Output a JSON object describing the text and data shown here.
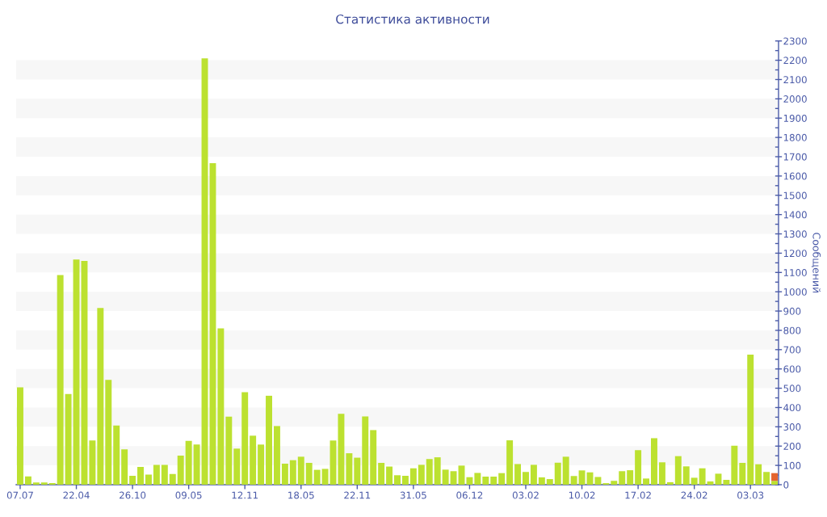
{
  "chart_data": {
    "type": "bar",
    "title": "Статистика активности",
    "ylabel": "Сообщений",
    "categories": [
      "07.07",
      null,
      null,
      null,
      null,
      null,
      null,
      "22.04",
      null,
      null,
      null,
      null,
      null,
      null,
      "26.10",
      null,
      null,
      null,
      null,
      null,
      null,
      "09.05",
      null,
      null,
      null,
      null,
      null,
      null,
      "12.11",
      null,
      null,
      null,
      null,
      null,
      null,
      "18.05",
      null,
      null,
      null,
      null,
      null,
      null,
      "22.11",
      null,
      null,
      null,
      null,
      null,
      null,
      "31.05",
      null,
      null,
      null,
      null,
      null,
      null,
      "06.12",
      null,
      null,
      null,
      null,
      null,
      null,
      "03.02",
      null,
      null,
      null,
      null,
      null,
      null,
      "10.02",
      null,
      null,
      null,
      null,
      null,
      null,
      "17.02",
      null,
      null,
      null,
      null,
      null,
      null,
      "24.02",
      null,
      null,
      null,
      null,
      null,
      null,
      "03.03",
      null,
      null,
      null
    ],
    "series": [
      {
        "color": "#bce130",
        "values": [
          505,
          43,
          12,
          11,
          8,
          1087,
          470,
          1167,
          1160,
          229,
          916,
          543,
          307,
          183,
          46,
          92,
          52,
          103,
          103,
          56,
          151,
          227,
          208,
          2210,
          1667,
          810,
          353,
          187,
          479,
          254,
          208,
          461,
          304,
          109,
          127,
          145,
          113,
          77,
          82,
          229,
          367,
          163,
          140,
          354,
          283,
          113,
          94,
          49,
          46,
          85,
          103,
          133,
          142,
          78,
          70,
          99,
          39,
          61,
          42,
          42,
          60,
          230,
          107,
          66,
          103,
          38,
          29,
          114,
          145,
          45,
          74,
          64,
          40,
          8,
          20,
          70,
          75,
          179,
          32,
          241,
          116,
          13,
          148,
          95,
          36,
          85,
          17,
          57,
          25,
          202,
          113,
          674,
          106,
          66,
          20
        ]
      },
      {
        "color": "#e5632e",
        "values": [
          null,
          null,
          null,
          null,
          null,
          null,
          null,
          null,
          null,
          null,
          null,
          null,
          null,
          null,
          null,
          null,
          null,
          null,
          null,
          null,
          null,
          null,
          null,
          null,
          null,
          null,
          null,
          null,
          null,
          null,
          null,
          null,
          null,
          null,
          null,
          null,
          null,
          null,
          null,
          null,
          null,
          null,
          null,
          null,
          null,
          null,
          null,
          null,
          null,
          null,
          null,
          null,
          null,
          null,
          null,
          null,
          null,
          null,
          null,
          null,
          null,
          null,
          null,
          null,
          null,
          null,
          null,
          null,
          null,
          null,
          null,
          null,
          null,
          null,
          null,
          null,
          null,
          null,
          null,
          null,
          null,
          null,
          null,
          null,
          null,
          null,
          null,
          null,
          null,
          null,
          null,
          null,
          null,
          null,
          40
        ]
      }
    ],
    "stacked": true,
    "ylim": [
      0,
      2300
    ],
    "yticks": [
      0,
      100,
      200,
      300,
      400,
      500,
      600,
      700,
      800,
      900,
      1000,
      1100,
      1200,
      1300,
      1400,
      1500,
      1600,
      1700,
      1800,
      1900,
      2000,
      2100,
      2200,
      2300
    ],
    "bands": [
      {
        "axis": "y",
        "from": 100,
        "to": 200,
        "color": "#f7f7f7"
      },
      {
        "axis": "y",
        "from": 300,
        "to": 400,
        "color": "#f7f7f7"
      },
      {
        "axis": "y",
        "from": 500,
        "to": 600,
        "color": "#f7f7f7"
      },
      {
        "axis": "y",
        "from": 700,
        "to": 800,
        "color": "#f7f7f7"
      },
      {
        "axis": "y",
        "from": 900,
        "to": 1000,
        "color": "#f7f7f7"
      },
      {
        "axis": "y",
        "from": 1100,
        "to": 1200,
        "color": "#f7f7f7"
      },
      {
        "axis": "y",
        "from": 1300,
        "to": 1400,
        "color": "#f7f7f7"
      },
      {
        "axis": "y",
        "from": 1500,
        "to": 1600,
        "color": "#f7f7f7"
      },
      {
        "axis": "y",
        "from": 1700,
        "to": 1800,
        "color": "#f7f7f7"
      },
      {
        "axis": "y",
        "from": 1900,
        "to": 2000,
        "color": "#f7f7f7"
      },
      {
        "axis": "y",
        "from": 2100,
        "to": 2200,
        "color": "#f7f7f7"
      }
    ]
  }
}
